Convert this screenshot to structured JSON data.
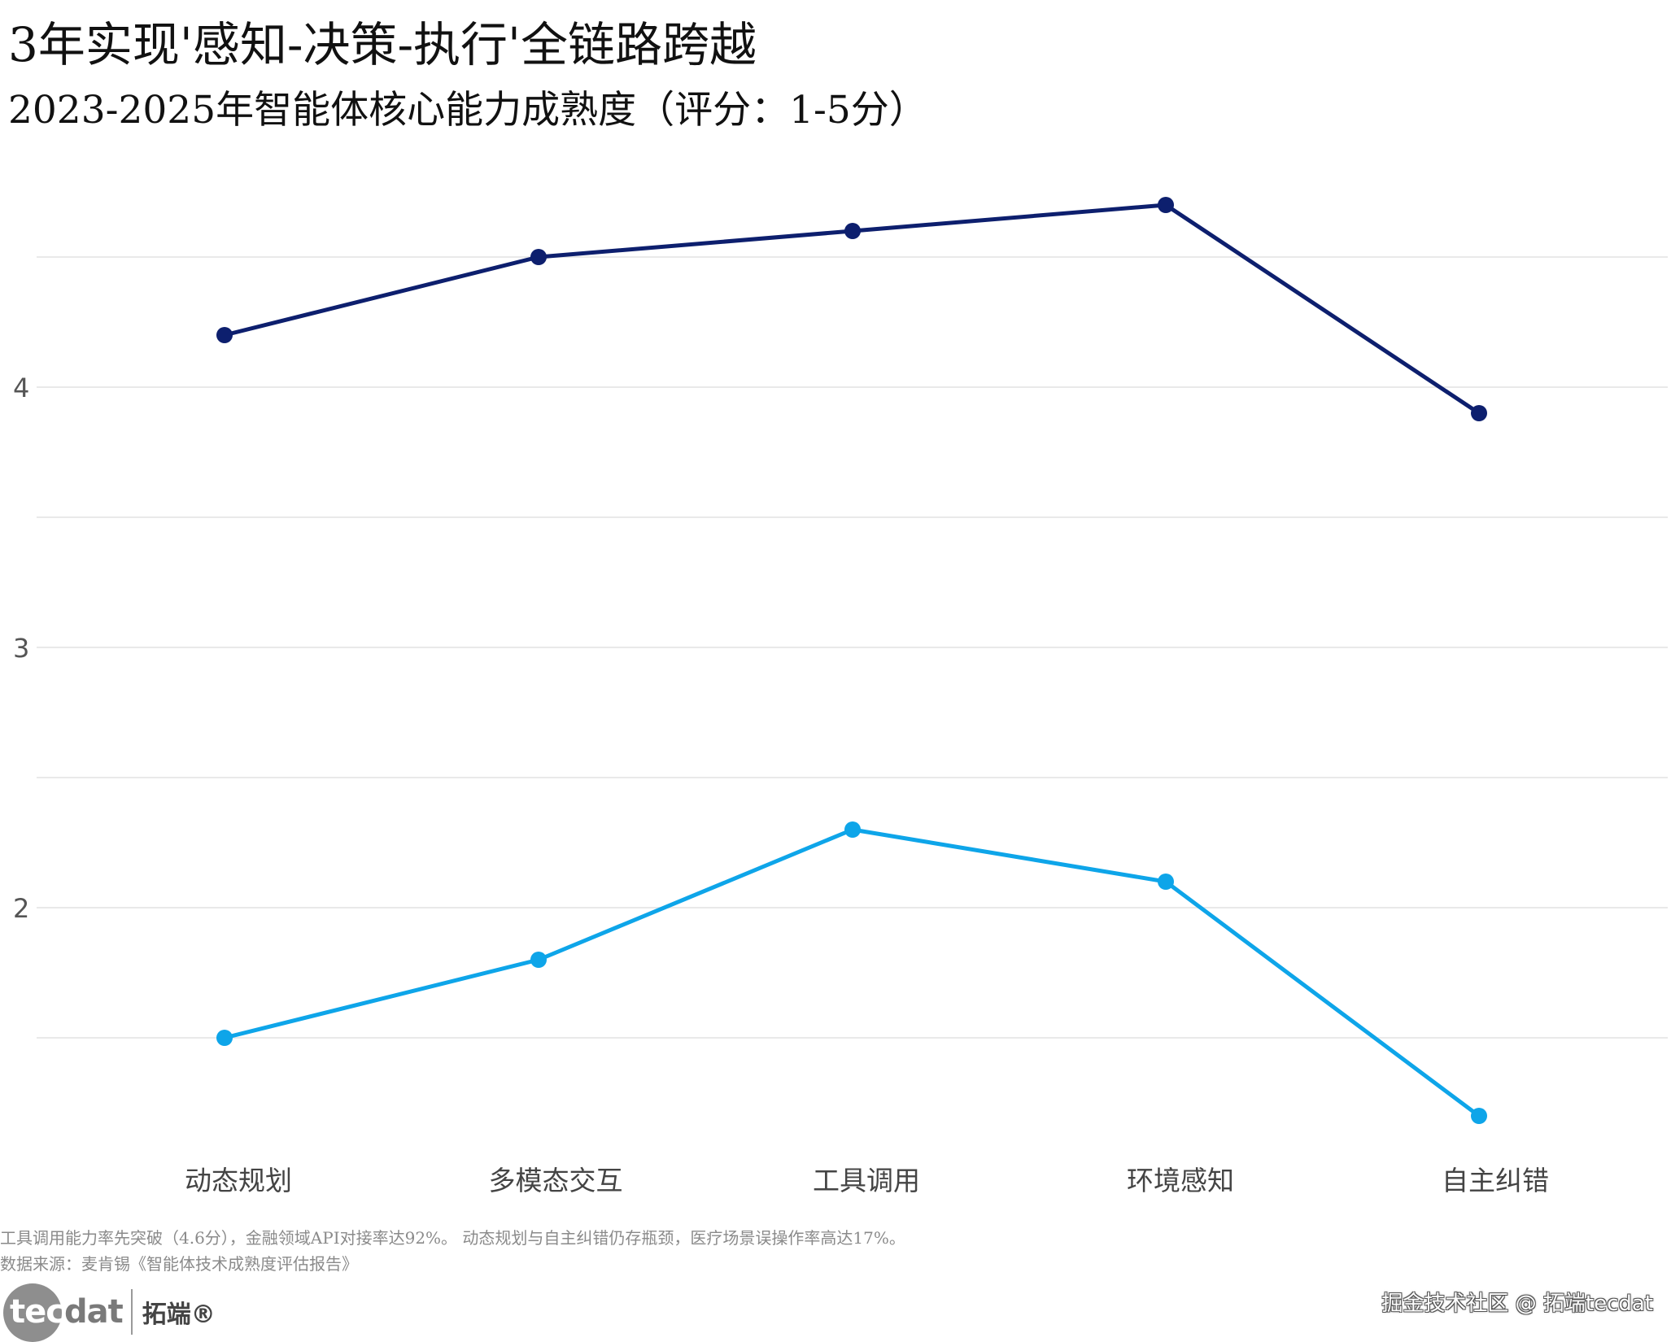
{
  "title": "3年实现'感知-决策-执行'全链路跨越",
  "subtitle": "2023-2025年智能体核心能力成熟度（评分：1-5分）",
  "chart_data": {
    "type": "line",
    "categories": [
      "动态规划",
      "多模态交互",
      "工具调用",
      "环境感知",
      "自主纠错"
    ],
    "series": [
      {
        "name": "",
        "color": "#0d1f6e",
        "values": [
          4.2,
          4.5,
          4.6,
          4.7,
          3.9
        ]
      },
      {
        "name": "",
        "color": "#0ea5e9",
        "values": [
          1.5,
          1.8,
          2.3,
          2.1,
          1.2
        ]
      }
    ],
    "ylim": [
      1.0,
      4.95
    ],
    "yticks": [
      2,
      3,
      4
    ],
    "grid": true,
    "xlabel": "",
    "ylabel": ""
  },
  "notes": {
    "line1": "工具调用能力率先突破（4.6分），金融领域API对接率达92%。 动态规划与自主纠错仍存瓶颈，医疗场景误操作率高达17%。",
    "line2": "数据来源：麦肯锡《智能体技术成熟度评估报告》"
  },
  "logo": {
    "tec": "tec",
    "dat": "dat",
    "cn": "拓端®"
  },
  "watermark": "掘金技术社区 @ 拓端tecdat"
}
